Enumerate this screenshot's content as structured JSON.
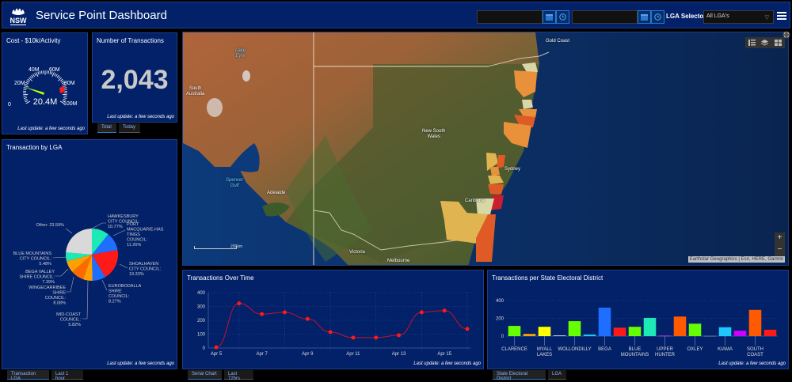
{
  "header": {
    "title": "Service Point Dashboard",
    "logo_text": "NSW",
    "start_date": "",
    "end_date": "",
    "lga_label": "LGA Selector",
    "lga_selected": "All LGA's"
  },
  "cost_panel": {
    "title": "Cost - $10k/Activity",
    "value": "20.4M",
    "gauge_ticks": [
      "0",
      "20M",
      "40M",
      "60M",
      "80M",
      "100M"
    ],
    "last_update": "Last update: a few seconds ago"
  },
  "transactions_panel": {
    "title": "Number of Transactions",
    "value": "2,043",
    "last_update": "Last update: a few seconds ago",
    "tabs": [
      {
        "label": "Total",
        "active": true
      },
      {
        "label": "Today",
        "active": false
      }
    ]
  },
  "lga_panel": {
    "title": "Transaction by LGA",
    "last_update": "Last update: a few seconds ago",
    "tabs": [
      {
        "label": "Transaction LGA",
        "active": true
      },
      {
        "label": "Last 1 hour",
        "active": false
      }
    ],
    "labels": {
      "hawkesbury": "HAWKESBURY\nCITY COUNCIL:\n10.77%",
      "port": "PORT\nMACQUARIE-HAS\nTINGS\nCOUNCIL:\n11.26%",
      "shoalhaven": "SHOALHAVEN\nCITY COUNCIL:\n19.33%",
      "eurobodalla": "EUROBODALLA\nSHIRE\nCOUNCIL:\n8.27%",
      "midcoast": "MID-COAST\nCOUNCIL:\n5.82%",
      "wingecarribee": "WINGECARRIBEE\nSHIRE\nCOUNCIL:\n8.08%",
      "bega": "BEGA VALLEY\nSHIRE COUNCIL:\n7.39%",
      "blue": "BLUE MOUNTAINS\nCITY COUNCIL:\n5.48%",
      "other": "Other: 23.59%"
    }
  },
  "map": {
    "labels": {
      "lake_eyre": "Lake\nEyre",
      "south_australia": "South\nAustralia",
      "nsw": "New South\nWales",
      "spencer_gulf": "Spencer\nGulf",
      "adelaide": "Adelaide",
      "victoria": "Victoria",
      "melbourne": "Melbourne",
      "canberra": "Canberra",
      "sydney": "Sydney",
      "gold_coast": "Gold Coast"
    },
    "scale": "200km",
    "attribution": "Earthstar Geographics | Esri, HERE, Garmin",
    "zoom_in": "+",
    "zoom_out": "−"
  },
  "line_panel": {
    "title": "Transactions Over Time",
    "last_update": "Last update: a few seconds ago",
    "tabs": [
      {
        "label": "Serial Chart",
        "active": true
      },
      {
        "label": "Last 72hrs",
        "active": false
      }
    ]
  },
  "bar_panel": {
    "title": "Transactions per State Electoral District",
    "last_update": "Last update: a few seconds ago",
    "tabs": [
      {
        "label": "State Electoral District",
        "active": true
      },
      {
        "label": "LGA",
        "active": false
      }
    ]
  },
  "chart_data": [
    {
      "type": "gauge",
      "title": "Cost - $10k/Activity",
      "value": 20.4,
      "unit": "M",
      "range": [
        0,
        100
      ],
      "ticks": [
        "0",
        "20M",
        "40M",
        "60M",
        "80M",
        "100M"
      ],
      "band_red": [
        92,
        100
      ]
    },
    {
      "type": "pie",
      "title": "Transaction by LGA",
      "categories": [
        "HAWKESBURY CITY COUNCIL",
        "PORT MACQUARIE-HASTINGS COUNCIL",
        "SHOALHAVEN CITY COUNCIL",
        "EUROBODALLA SHIRE COUNCIL",
        "MID-COAST COUNCIL",
        "WINGECARRIBEE SHIRE COUNCIL",
        "BEGA VALLEY SHIRE COUNCIL",
        "BLUE MOUNTAINS CITY COUNCIL",
        "Other"
      ],
      "values": [
        10.77,
        11.26,
        19.33,
        8.27,
        5.82,
        8.08,
        7.39,
        5.48,
        23.59
      ],
      "colors": [
        "#1de9b6",
        "#1e6fff",
        "#ff1a1a",
        "#1e6fff",
        "#ffa000",
        "#ff6a00",
        "#ffa000",
        "#1de9b6",
        "#d9d9d9"
      ]
    },
    {
      "type": "line",
      "title": "Transactions Over Time",
      "x": [
        "Apr 5",
        "Apr 6",
        "Apr 7",
        "Apr 8",
        "Apr 9",
        "Apr 10",
        "Apr 11",
        "Apr 12",
        "Apr 13",
        "Apr 14",
        "Apr 15",
        "Apr 16"
      ],
      "values": [
        5,
        322,
        245,
        258,
        210,
        115,
        75,
        75,
        92,
        258,
        270,
        138
      ],
      "xticks": [
        "Apr 5",
        "Apr 7",
        "Apr 9",
        "Apr 11",
        "Apr 13",
        "Apr 15"
      ],
      "yticks": [
        0,
        100,
        200,
        300,
        400
      ],
      "ylim": [
        0,
        400
      ],
      "grid": true
    },
    {
      "type": "bar",
      "title": "Transactions per State Electoral District",
      "categories": [
        "CLARENCE",
        "",
        "MYALL LAKES",
        "",
        "WOLLONDILLY",
        "",
        "BEGA",
        "",
        "BLUE MOUNTAINS",
        "",
        "UPPER HUNTER",
        "",
        "OXLEY",
        "",
        "KIAMA",
        "",
        "SOUTH COAST",
        ""
      ],
      "values": [
        115,
        25,
        105,
        8,
        168,
        18,
        320,
        95,
        105,
        205,
        5,
        220,
        140,
        3,
        100,
        62,
        295,
        72
      ],
      "colors": [
        "#66ff00",
        "#ffa000",
        "#ffff00",
        "#e0e0e0",
        "#66ff00",
        "#1ec8ff",
        "#1e6fff",
        "#ff1a1a",
        "#66ff00",
        "#1de9b6",
        "#e040fb",
        "#ff5a00",
        "#66ff00",
        "#7d8aa8",
        "#1ec8ff",
        "#cc00ff",
        "#ff5a00",
        "#ff1a1a"
      ],
      "yticks": [
        0,
        200,
        400
      ],
      "ylim": [
        0,
        400
      ],
      "grid": true
    }
  ]
}
